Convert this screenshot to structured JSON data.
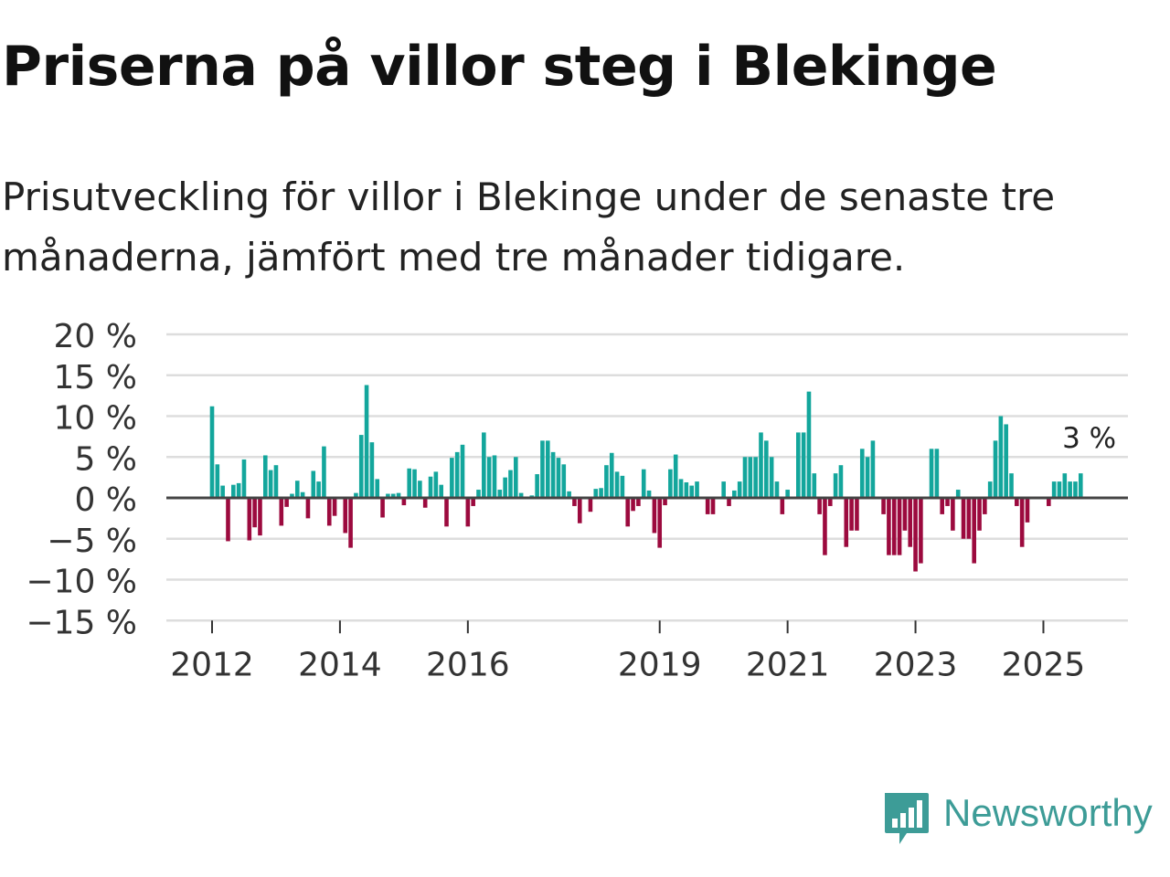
{
  "title": "Priserna på villor steg i Blekinge",
  "subtitle": "Prisutveckling för villor i Blekinge under de senaste tre månaderna, jämfört med tre månader tidigare.",
  "brand": {
    "name": "Newsworthy",
    "icon": "newsworthy-logo-icon",
    "color": "#3d9c97"
  },
  "colors": {
    "positive": "#13a69c",
    "negative": "#9c0a3e",
    "grid": "#dddddd",
    "zero": "#444444"
  },
  "chart_data": {
    "type": "bar",
    "title": "Priserna på villor steg i Blekinge",
    "xlabel": "",
    "ylabel": "",
    "ylim": [
      -15,
      20
    ],
    "yticks": [
      20,
      15,
      10,
      5,
      0,
      -5,
      -10,
      -15
    ],
    "ytick_labels": [
      "20 %",
      "15 %",
      "10 %",
      "5 %",
      "0 %",
      "−5 %",
      "−10 %",
      "−15 %"
    ],
    "xticks": [
      {
        "label": "2012",
        "index": 0
      },
      {
        "label": "2014",
        "index": 24
      },
      {
        "label": "2016",
        "index": 48
      },
      {
        "label": "2019",
        "index": 84
      },
      {
        "label": "2021",
        "index": 108
      },
      {
        "label": "2023",
        "index": 132
      },
      {
        "label": "2025",
        "index": 156
      }
    ],
    "start": "2012-01",
    "frequency": "monthly",
    "values": [
      11.2,
      4.1,
      1.5,
      -5.3,
      1.6,
      1.8,
      4.7,
      -5.2,
      -3.6,
      -4.6,
      5.2,
      3.4,
      4.0,
      -3.4,
      -1.1,
      0.5,
      2.1,
      0.7,
      -2.5,
      3.3,
      2.0,
      6.3,
      -3.4,
      -2.2,
      0.1,
      -4.3,
      -6.1,
      0.6,
      7.7,
      13.8,
      6.8,
      2.3,
      -2.4,
      0.5,
      0.5,
      0.6,
      -0.9,
      3.6,
      3.5,
      2.1,
      -1.2,
      2.6,
      3.2,
      1.6,
      -3.5,
      4.9,
      5.6,
      6.5,
      -3.5,
      -1.0,
      1.0,
      8.0,
      5.0,
      5.2,
      1.0,
      2.5,
      3.4,
      5.0,
      0.6,
      0.0,
      0.3,
      2.9,
      7.0,
      7.0,
      5.6,
      4.9,
      4.1,
      0.8,
      -1.0,
      -3.1,
      0.0,
      -1.7,
      1.1,
      1.2,
      4.0,
      5.5,
      3.2,
      2.7,
      -3.5,
      -1.6,
      -1.0,
      3.5,
      0.9,
      -4.3,
      -6.1,
      -0.9,
      3.5,
      5.3,
      2.3,
      1.9,
      1.5,
      2.0,
      0.0,
      -2.0,
      -2.0,
      0.0,
      2.0,
      -1.0,
      0.9,
      2.0,
      5.0,
      5.0,
      5.0,
      8.0,
      7.0,
      5.0,
      2.0,
      -2.0,
      1.0,
      0.0,
      8.0,
      8.0,
      13.0,
      3.0,
      -2.0,
      -7.0,
      -1.0,
      3.0,
      4.0,
      -6.0,
      -4.0,
      -4.0,
      6.0,
      5.0,
      7.0,
      0.0,
      -2.0,
      -7.0,
      -7.0,
      -7.0,
      -4.0,
      -6.0,
      -9.0,
      -8.0,
      0.0,
      6.0,
      6.0,
      -2.0,
      -1.0,
      -4.0,
      1.0,
      -5.0,
      -5.0,
      -8.0,
      -4.0,
      -2.0,
      2.0,
      7.0,
      10.0,
      9.0,
      3.0,
      -1.0,
      -6.0,
      -3.0,
      0.0,
      0.0,
      0.0,
      -1.0,
      2.0,
      2.0,
      3.0,
      2.0,
      2.0,
      3.0
    ],
    "annotation": {
      "text": "3 %",
      "index": 167,
      "value": 3.0
    }
  }
}
